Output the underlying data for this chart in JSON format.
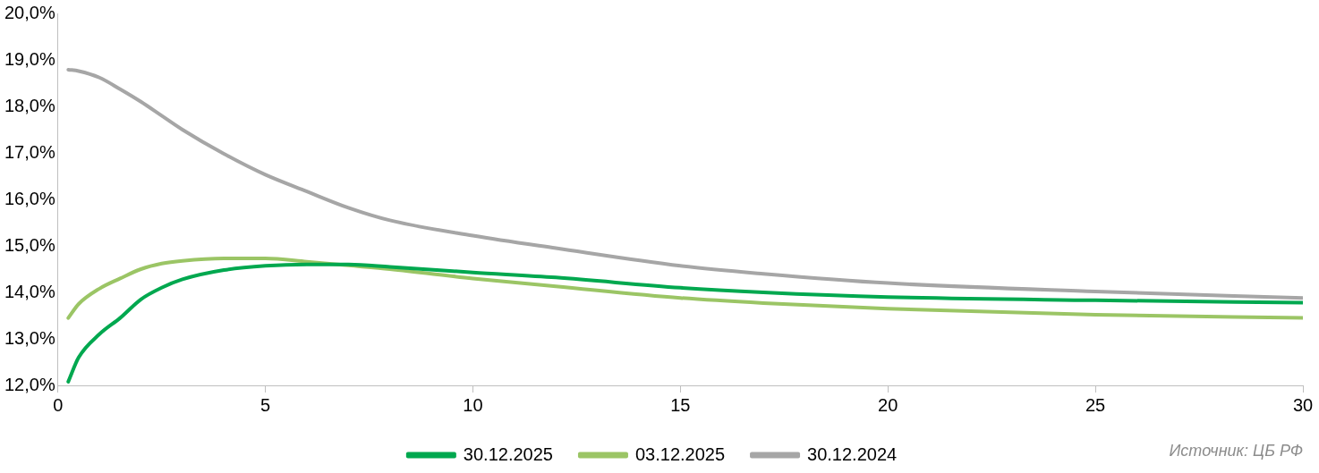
{
  "chart_data": {
    "type": "line",
    "x": [
      0.25,
      0.5,
      1,
      1.5,
      2,
      2.5,
      3,
      4,
      5,
      6,
      7,
      8,
      10,
      12,
      15,
      17,
      20,
      25,
      30
    ],
    "series": [
      {
        "name": "30.12.2025",
        "color": "#00a84f",
        "values": [
          12.08,
          12.6,
          13.1,
          13.45,
          13.85,
          14.1,
          14.28,
          14.48,
          14.57,
          14.6,
          14.6,
          14.55,
          14.43,
          14.32,
          14.1,
          14.0,
          13.9,
          13.83,
          13.78
        ]
      },
      {
        "name": "03.12.2025",
        "color": "#9bc565",
        "values": [
          13.45,
          13.75,
          14.08,
          14.3,
          14.5,
          14.62,
          14.68,
          14.73,
          14.73,
          14.66,
          14.58,
          14.5,
          14.3,
          14.13,
          13.88,
          13.77,
          13.65,
          13.52,
          13.45
        ]
      },
      {
        "name": "30.12.2024",
        "color": "#a6a6a6",
        "values": [
          18.79,
          18.76,
          18.62,
          18.37,
          18.1,
          17.8,
          17.5,
          16.98,
          16.53,
          16.17,
          15.82,
          15.55,
          15.22,
          14.95,
          14.57,
          14.4,
          14.2,
          14.02,
          13.88
        ]
      }
    ],
    "xlim": [
      0,
      30
    ],
    "xticks": [
      0,
      5,
      10,
      15,
      20,
      25,
      30
    ],
    "ylim": [
      12,
      20
    ],
    "yticks": [
      {
        "value": 12,
        "label": "12,0%"
      },
      {
        "value": 13,
        "label": "13,0%"
      },
      {
        "value": 14,
        "label": "14,0%"
      },
      {
        "value": 15,
        "label": "15,0%"
      },
      {
        "value": 16,
        "label": "16,0%"
      },
      {
        "value": 17,
        "label": "17,0%"
      },
      {
        "value": 18,
        "label": "18,0%"
      },
      {
        "value": 19,
        "label": "19,0%"
      },
      {
        "value": 20,
        "label": "20,0%"
      }
    ],
    "grid": false,
    "legend": "bottom",
    "marker": "none",
    "line_style": "solid",
    "annotations": [
      "Источник: ЦБ РФ"
    ]
  }
}
